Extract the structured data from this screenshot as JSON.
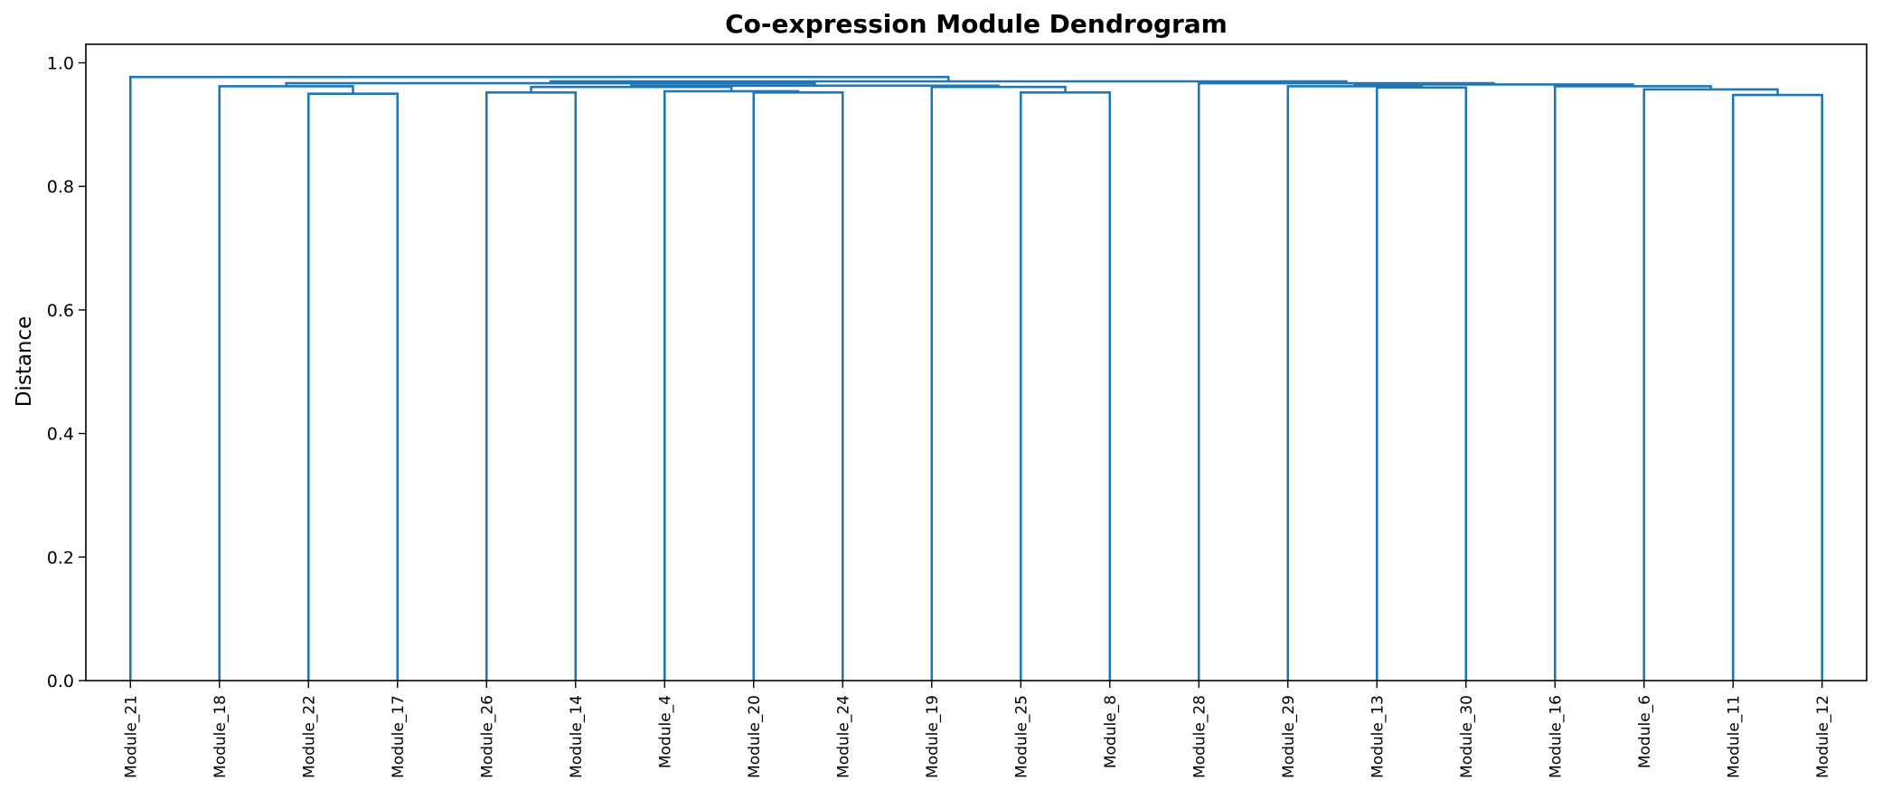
{
  "chart_data": {
    "type": "dendrogram",
    "title": "Co-expression Module Dendrogram",
    "xlabel": "",
    "ylabel": "Distance",
    "ylim": [
      0.0,
      1.03
    ],
    "yticks": [
      "0.0",
      "0.2",
      "0.4",
      "0.6",
      "0.8",
      "1.0"
    ],
    "grid": false,
    "link_color": "#1f77b4",
    "leaves": [
      "Module_21",
      "Module_18",
      "Module_22",
      "Module_17",
      "Module_26",
      "Module_14",
      "Module_4",
      "Module_20",
      "Module_24",
      "Module_19",
      "Module_25",
      "Module_8",
      "Module_28",
      "Module_29",
      "Module_13",
      "Module_30",
      "Module_16",
      "Module_6",
      "Module_11",
      "Module_12"
    ],
    "merges": [
      {
        "left": "Module_22",
        "right": "Module_17",
        "height": 0.95
      },
      {
        "left": "Module_18",
        "right": "m0",
        "height": 0.962
      },
      {
        "left": "Module_26",
        "right": "Module_14",
        "height": 0.952
      },
      {
        "left": "Module_20",
        "right": "Module_24",
        "height": 0.952
      },
      {
        "left": "Module_4",
        "right": "m3",
        "height": 0.954
      },
      {
        "left": "m2",
        "right": "m4",
        "height": 0.961
      },
      {
        "left": "Module_25",
        "right": "Module_8",
        "height": 0.952
      },
      {
        "left": "Module_19",
        "right": "m6",
        "height": 0.961
      },
      {
        "left": "m5",
        "right": "m7",
        "height": 0.963
      },
      {
        "left": "m1",
        "right": "m8",
        "height": 0.967
      },
      {
        "left": "Module_11",
        "right": "Module_12",
        "height": 0.948
      },
      {
        "left": "Module_6",
        "right": "m10",
        "height": 0.957
      },
      {
        "left": "Module_16",
        "right": "m11",
        "height": 0.962
      },
      {
        "left": "Module_13",
        "right": "Module_30",
        "height": 0.96
      },
      {
        "left": "Module_29",
        "right": "m13",
        "height": 0.962
      },
      {
        "left": "m14",
        "right": "m12",
        "height": 0.965
      },
      {
        "left": "Module_28",
        "right": "m15",
        "height": 0.967
      },
      {
        "left": "m9",
        "right": "m16",
        "height": 0.97
      },
      {
        "left": "Module_21",
        "right": "m17",
        "height": 0.977
      }
    ]
  }
}
